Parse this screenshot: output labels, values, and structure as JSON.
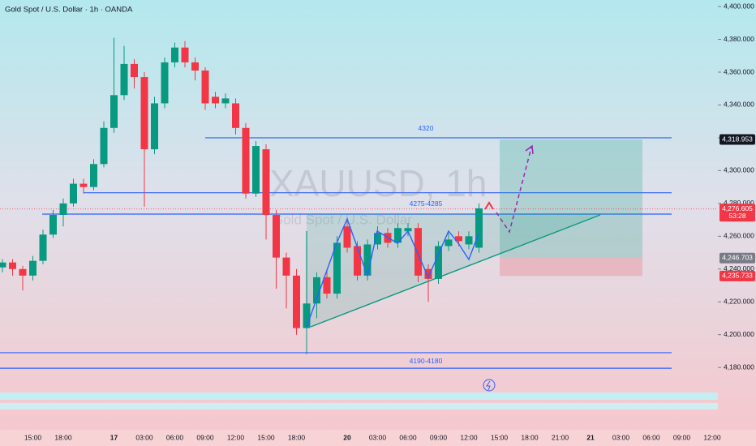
{
  "chart_data": {
    "type": "candlestick",
    "title": "Gold Spot / U.S. Dollar · 1h · OANDA",
    "watermark": "XAUUSD, 1h",
    "watermark_subtitle": "Gold Spot / U.S. Dollar",
    "up_color": "#089981",
    "down_color": "#f23645",
    "categories": [
      null,
      null,
      null,
      "15:00",
      null,
      null,
      "18:00",
      null,
      null,
      null,
      null,
      "17",
      null,
      null,
      "03:00",
      null,
      null,
      "06:00",
      null,
      null,
      "09:00",
      null,
      null,
      "12:00",
      null,
      null,
      "15:00",
      null,
      null,
      "18:00",
      null,
      null,
      null,
      null,
      "20",
      null,
      null,
      "03:00",
      null,
      null,
      "06:00",
      null,
      null,
      "09:00",
      null,
      null,
      "12:00",
      null,
      null,
      "15:00",
      null,
      null,
      "18:00",
      null,
      null,
      "21:00",
      null,
      null,
      "21",
      null,
      null,
      "03:00",
      null,
      null,
      "06:00",
      null,
      null,
      "09:00",
      null,
      null,
      "12:00"
    ],
    "open": [
      4241,
      4244,
      4240,
      4236,
      4245,
      4261,
      4273,
      4280,
      4292,
      4290,
      4304,
      4326,
      4346,
      4365,
      4357,
      4313,
      4341,
      4366,
      4375,
      4366,
      4361,
      4345,
      4341,
      4341,
      4326,
      4286,
      4313,
      4273,
      4247,
      4236,
      4204,
      4219,
      4235,
      4225,
      4266,
      4254,
      4236,
      4255,
      4262,
      4256,
      4263,
      4265,
      4240,
      4234,
      4254,
      4260,
      4255,
      4253,
      null,
      null,
      null,
      null,
      null,
      null,
      null,
      null,
      null,
      null,
      null,
      null,
      null,
      null,
      null,
      null,
      null,
      null,
      null,
      null,
      null,
      null,
      null
    ],
    "high": [
      4246,
      4246,
      4242,
      4248,
      4264,
      4276,
      4283,
      4295,
      4295,
      4307,
      4330,
      4381,
      4376,
      4368,
      4360,
      4345,
      4369,
      4378,
      4379,
      4369,
      4363,
      4348,
      4347,
      4344,
      4329,
      4318,
      4316,
      4276,
      4250,
      4240,
      4222,
      4238,
      4240,
      4260,
      4269,
      4257,
      4258,
      4266,
      4265,
      4268,
      4268,
      4268,
      4243,
      4257,
      4262,
      4263,
      4263,
      4280,
      null,
      null,
      null,
      null,
      null,
      null,
      null,
      null,
      null,
      null,
      null,
      null,
      null,
      null,
      null,
      null,
      null,
      null,
      null,
      null,
      null,
      null,
      null
    ],
    "low": [
      4238,
      4236,
      4227,
      4233,
      4243,
      4259,
      4266,
      4278,
      4286,
      4288,
      4302,
      4323,
      4343,
      4350,
      4278,
      4310,
      4338,
      4363,
      4363,
      4355,
      4337,
      4338,
      4338,
      4322,
      4283,
      4284,
      4258,
      4228,
      4216,
      4200,
      4188,
      4210,
      4222,
      4222,
      4250,
      4233,
      4233,
      4252,
      4253,
      4253,
      4260,
      4232,
      4220,
      4231,
      4251,
      4254,
      4252,
      4250,
      null,
      null,
      null,
      null,
      null,
      null,
      null,
      null,
      null,
      null,
      null,
      null,
      null,
      null,
      null,
      null,
      null,
      null,
      null,
      null,
      null,
      null,
      null
    ],
    "close": [
      4244,
      4240,
      4236,
      4245,
      4261,
      4273,
      4280,
      4292,
      4290,
      4304,
      4326,
      4346,
      4365,
      4357,
      4313,
      4341,
      4366,
      4375,
      4366,
      4361,
      4341,
      4341,
      4344,
      4326,
      4286,
      4315,
      4273,
      4247,
      4236,
      4204,
      4219,
      4235,
      4225,
      4256,
      4253,
      4236,
      4255,
      4262,
      4256,
      4265,
      4265,
      4236,
      4234,
      4254,
      4258,
      4257,
      4260,
      4277,
      null,
      null,
      null,
      null,
      null,
      null,
      null,
      null,
      null,
      null,
      null,
      null,
      null,
      null,
      null,
      null,
      null,
      null,
      null,
      null,
      null,
      null,
      null
    ],
    "ylim": [
      4143,
      4404
    ],
    "yticks": [
      {
        "value": 4180,
        "label": "4,180.000"
      },
      {
        "value": 4200,
        "label": "4,200.000"
      },
      {
        "value": 4220,
        "label": "4,220.000"
      },
      {
        "value": 4240,
        "label": "4,240.000"
      },
      {
        "value": 4260,
        "label": "4,260.000"
      },
      {
        "value": 4280,
        "label": "4,280.000"
      },
      {
        "value": 4300,
        "label": "4,300.000"
      },
      {
        "value": 4320,
        "label": "4,320.000"
      },
      {
        "value": 4340,
        "label": "4,340.000"
      },
      {
        "value": 4360,
        "label": "4,360.000"
      },
      {
        "value": 4380,
        "label": "4,380.000"
      },
      {
        "value": 4400,
        "label": "4,400.000"
      }
    ],
    "levels": [
      {
        "label": "4320",
        "values": [
          4320
        ]
      },
      {
        "label": "4275-4285",
        "values": [
          4286.5,
          4273.5
        ]
      },
      {
        "label": "4190-4180",
        "values": [
          4189,
          4179.5
        ]
      }
    ],
    "price_labels": [
      {
        "value": 4318.953,
        "label": "4,318.953",
        "color": "#131722"
      },
      {
        "value": 4276.605,
        "label": "4,276.605",
        "color": "#f23645"
      },
      {
        "value": 4246.703,
        "label": "4,246.703",
        "color": "#787b86"
      },
      {
        "value": 4235.733,
        "label": "4,235.733",
        "color": "#f23645"
      }
    ],
    "countdown": "53:28"
  }
}
